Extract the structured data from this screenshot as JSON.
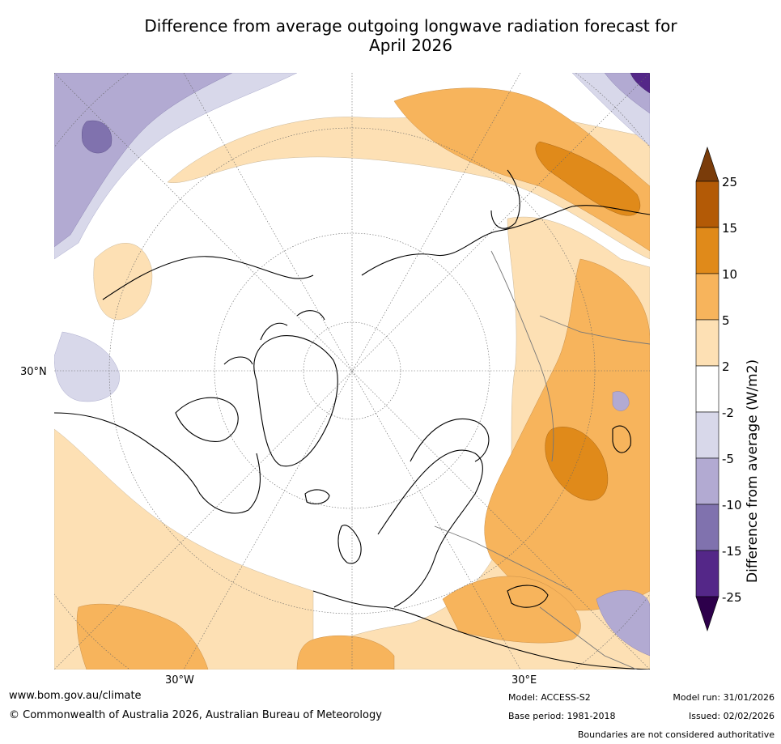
{
  "title_line1": "Difference from average outgoing longwave radiation forecast for",
  "title_line2": "April 2026",
  "axis_labels": {
    "lat_30n": "30°N",
    "lon_30w": "30°W",
    "lon_30e": "30°E"
  },
  "colorbar": {
    "label": "Difference from average (W/m2)",
    "ticks": [
      "25",
      "15",
      "10",
      "5",
      "2",
      "-2",
      "-5",
      "-10",
      "-15",
      "-25"
    ],
    "colors": [
      "#7a3c0a",
      "#b35a06",
      "#e08a1a",
      "#f7b45c",
      "#fde0b4",
      "#ffffff",
      "#d8d8ea",
      "#b2aad2",
      "#8072ae",
      "#542788",
      "#2d004b"
    ]
  },
  "footer": {
    "website": "www.bom.gov.au/climate",
    "copyright": "© Commonwealth of Australia 2026, Australian Bureau of Meteorology",
    "model": "Model: ACCESS-S2",
    "base_period": "Base period: 1981-2018",
    "model_run": "Model run: 31/01/2026",
    "issued": "Issued: 02/02/2026",
    "boundaries": "Boundaries are not considered authoritative"
  }
}
